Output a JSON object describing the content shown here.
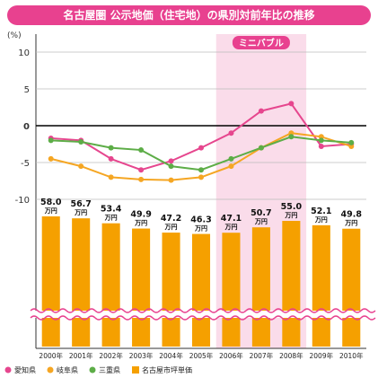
{
  "title": "名古屋圏 公示地価（住宅地）の県別対前年比の推移",
  "colors": {
    "title_bg": "#e8418f",
    "aichi": "#e6468e",
    "gifu": "#f5a623",
    "mie": "#5dad47",
    "bar": "#f5a000",
    "mini_bubble_band": "#fadcea",
    "mini_bubble_label_bg": "#e8418f"
  },
  "chart_data": {
    "type": "line",
    "x": [
      "2000年",
      "2001年",
      "2002年",
      "2003年",
      "2004年",
      "2005年",
      "2006年",
      "2007年",
      "2008年",
      "2009年",
      "2010年"
    ],
    "ylabel": "(%)",
    "ylim": [
      -10,
      10
    ],
    "yticks": [
      "10",
      "5",
      "0",
      "-5",
      "-10"
    ],
    "grid": "horizontal",
    "shaded_period": {
      "label": "ミニバブル",
      "from": "2006年",
      "to": "2008年"
    },
    "series": [
      {
        "name": "愛知県",
        "values": [
          -1.7,
          -2.0,
          -4.5,
          -6.0,
          -4.8,
          -3.0,
          -1.0,
          2.0,
          3.0,
          -2.8,
          -2.5
        ]
      },
      {
        "name": "岐阜県",
        "values": [
          -4.5,
          -5.5,
          -7.0,
          -7.3,
          -7.4,
          -7.0,
          -5.5,
          -3.0,
          -1.0,
          -1.5,
          -2.8
        ]
      },
      {
        "name": "三重県",
        "values": [
          -2.0,
          -2.2,
          -3.0,
          -3.3,
          -5.5,
          -6.0,
          -4.5,
          -3.0,
          -1.5,
          -2.0,
          -2.3
        ]
      }
    ],
    "bars": {
      "name": "名古屋市坪単価",
      "values": [
        58.0,
        56.7,
        53.4,
        49.9,
        47.2,
        46.3,
        47.1,
        50.7,
        55.0,
        52.1,
        49.8
      ],
      "labels": [
        "58.0",
        "56.7",
        "53.4",
        "49.9",
        "47.2",
        "46.3",
        "47.1",
        "50.7",
        "55.0",
        "52.1",
        "49.8"
      ],
      "unit": "万円"
    },
    "legend": {
      "placement": "bottom-left",
      "items": [
        "愛知県",
        "岐阜県",
        "三重県",
        "名古屋市坪単価"
      ]
    }
  }
}
